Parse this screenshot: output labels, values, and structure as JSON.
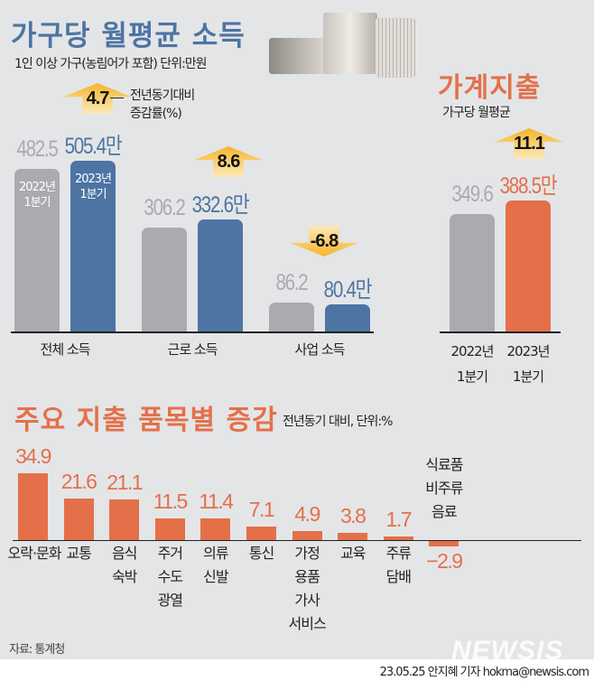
{
  "income": {
    "title": "가구당 월평균 소득",
    "subtitle": "1인 이상 가구(농림어가 포함) 단위:만원",
    "legend_note": [
      "전년동기대비",
      "증감률(%)"
    ],
    "bar_period_labels": {
      "prev": [
        "2022년",
        "1분기"
      ],
      "curr": [
        "2023년",
        "1분기"
      ]
    }
  },
  "expense": {
    "title": "가계지출",
    "subtitle": "가구당 월평균",
    "period_labels": {
      "prev": [
        "2022년",
        "1분기"
      ],
      "curr": [
        "2023년",
        "1분기"
      ]
    }
  },
  "items": {
    "title": "주요 지출 품목별 증감",
    "subtitle": "전년동기 대비, 단위:%"
  },
  "footer": {
    "source": "자료: 통계청",
    "credit": "23.05.25 안지혜 기자 hokma@newsis.com",
    "logo": "NEWSIS"
  },
  "colors": {
    "prev": "#a9abae",
    "income_curr": "#4d74a3",
    "expense_curr": "#e4704a",
    "arrow": "#f5b52a",
    "items": "#e4704a"
  },
  "chart_data": [
    {
      "type": "bar",
      "title": "가구당 월평균 소득",
      "categories": [
        "전체 소득",
        "근로 소득",
        "사업 소득"
      ],
      "series": [
        {
          "name": "2022년 1분기",
          "values": [
            482.5,
            306.2,
            86.2
          ],
          "labels": [
            "482.5",
            "306.2",
            "86.2"
          ]
        },
        {
          "name": "2023년 1분기",
          "values": [
            505.4,
            332.6,
            80.4
          ],
          "labels": [
            "505.4만",
            "332.6만",
            "80.4만"
          ]
        }
      ],
      "change_pct": [
        "4.7",
        "8.6",
        "-6.8"
      ],
      "unit": "만원"
    },
    {
      "type": "bar",
      "title": "가계지출",
      "categories": [
        "2022년 1분기",
        "2023년 1분기"
      ],
      "values": [
        349.6,
        388.5
      ],
      "labels": [
        "349.6",
        "388.5만"
      ],
      "change_pct": "11.1",
      "unit": "만원"
    },
    {
      "type": "bar",
      "title": "주요 지출 품목별 증감",
      "categories": [
        [
          "오락·문화"
        ],
        [
          "교통"
        ],
        [
          "음식",
          "숙박"
        ],
        [
          "주거",
          "수도",
          "광열"
        ],
        [
          "의류",
          "신발"
        ],
        [
          "통신"
        ],
        [
          "가정",
          "용품",
          "가사",
          "서비스"
        ],
        [
          "교육"
        ],
        [
          "주류",
          "담배"
        ],
        [
          "식료품",
          "비주류",
          "음료"
        ]
      ],
      "values": [
        34.9,
        21.6,
        21.1,
        11.5,
        11.4,
        7.1,
        4.9,
        3.8,
        1.7,
        -2.9
      ],
      "labels": [
        "34.9",
        "21.6",
        "21.1",
        "11.5",
        "11.4",
        "7.1",
        "4.9",
        "3.8",
        "1.7",
        "−2.9"
      ],
      "unit": "%"
    }
  ]
}
